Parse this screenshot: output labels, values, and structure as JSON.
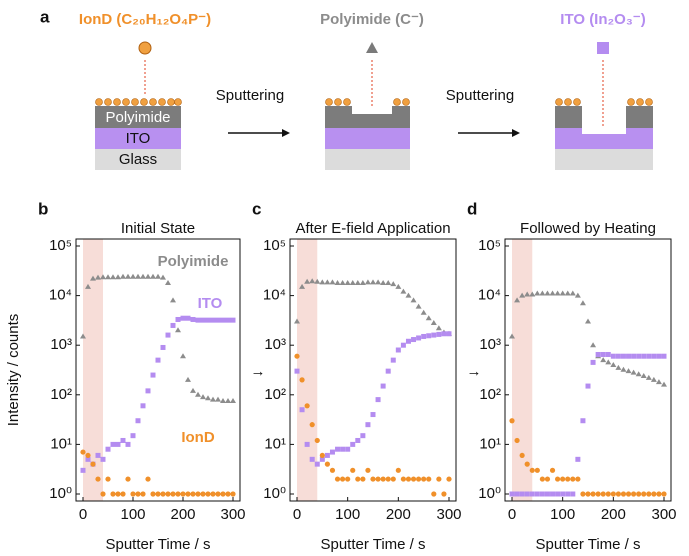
{
  "schematic": {
    "panel": "a",
    "ion_label": "IonD (C₂₀H₁₂O₄P⁻)",
    "polyimide_ion_label": "Polyimide (C⁻)",
    "ito_ion_label": "ITO (In₂O₃⁻)",
    "layers": [
      "Polyimide",
      "ITO",
      "Glass"
    ],
    "step_labels": [
      "Sputtering",
      "Sputtering"
    ]
  },
  "arrows": [
    "→",
    "→"
  ],
  "chart_data": [
    {
      "type": "scatter",
      "panel": "b",
      "title": "Initial State",
      "xlabel": "Sputter Time / s",
      "ylabel": "Intensity / counts",
      "log_y": true,
      "xlim": [
        0,
        300
      ],
      "xticks": [
        0,
        100,
        200,
        300
      ],
      "ylim": [
        1,
        100000
      ],
      "yticks": [
        {
          "value": 1,
          "label": "10⁰"
        },
        {
          "value": 10,
          "label": "10¹"
        },
        {
          "value": 100,
          "label": "10²"
        },
        {
          "value": 1000,
          "label": "10³"
        },
        {
          "value": 10000,
          "label": "10⁴"
        },
        {
          "value": 100000,
          "label": "10⁵"
        }
      ],
      "highlight_xlim": [
        0,
        40
      ],
      "x": [
        0,
        10,
        20,
        30,
        40,
        50,
        60,
        70,
        80,
        90,
        100,
        110,
        120,
        130,
        140,
        150,
        160,
        170,
        180,
        190,
        200,
        210,
        220,
        230,
        240,
        250,
        260,
        270,
        280,
        290,
        300
      ],
      "series": [
        {
          "name": "Polyimide",
          "color": "#8c8c8c",
          "marker": "triangle",
          "values": [
            1500,
            15000,
            22000,
            23000,
            23500,
            23500,
            23500,
            23500,
            24000,
            24000,
            24000,
            24000,
            24000,
            24000,
            24000,
            24000,
            23000,
            18000,
            8000,
            2000,
            600,
            200,
            120,
            100,
            90,
            85,
            80,
            80,
            75,
            75,
            75
          ]
        },
        {
          "name": "ITO",
          "color": "#b48cf0",
          "marker": "square",
          "values": [
            3,
            5,
            4,
            6,
            5,
            8,
            10,
            10,
            12,
            10,
            15,
            30,
            60,
            120,
            250,
            500,
            900,
            1600,
            2500,
            3300,
            3500,
            3500,
            3300,
            3200,
            3200,
            3200,
            3200,
            3200,
            3200,
            3200,
            3200
          ]
        },
        {
          "name": "IonD",
          "color": "#f0902a",
          "marker": "circle",
          "values": [
            7,
            6,
            4,
            2,
            1,
            2,
            1,
            1,
            1,
            2,
            1,
            1,
            1,
            2,
            1,
            1,
            1,
            1,
            1,
            1,
            1,
            1,
            1,
            1,
            1,
            1,
            1,
            1,
            1,
            1,
            1
          ]
        }
      ]
    },
    {
      "type": "scatter",
      "panel": "c",
      "title": "After E-field Application",
      "xlabel": "Sputter Time / s",
      "log_y": true,
      "xlim": [
        0,
        300
      ],
      "xticks": [
        0,
        100,
        200,
        300
      ],
      "ylim": [
        1,
        100000
      ],
      "yticks": [
        {
          "value": 1,
          "label": "10⁰"
        },
        {
          "value": 10,
          "label": "10¹"
        },
        {
          "value": 100,
          "label": "10²"
        },
        {
          "value": 1000,
          "label": "10³"
        },
        {
          "value": 10000,
          "label": "10⁴"
        },
        {
          "value": 100000,
          "label": "10⁵"
        }
      ],
      "highlight_xlim": [
        0,
        40
      ],
      "x": [
        0,
        10,
        20,
        30,
        40,
        50,
        60,
        70,
        80,
        90,
        100,
        110,
        120,
        130,
        140,
        150,
        160,
        170,
        180,
        190,
        200,
        210,
        220,
        230,
        240,
        250,
        260,
        270,
        280,
        290,
        300
      ],
      "series": [
        {
          "color": "#8c8c8c",
          "marker": "triangle",
          "values": [
            3000,
            15000,
            19000,
            19500,
            19000,
            18500,
            18500,
            18500,
            18000,
            18000,
            18000,
            18000,
            18000,
            18000,
            18500,
            18500,
            18500,
            18000,
            18000,
            17000,
            15000,
            12000,
            10000,
            8000,
            6000,
            4500,
            3500,
            2800,
            2200,
            1800,
            1700
          ]
        },
        {
          "color": "#b48cf0",
          "marker": "square",
          "values": [
            300,
            50,
            10,
            5,
            4,
            5,
            6,
            7,
            8,
            8,
            8,
            10,
            12,
            15,
            25,
            40,
            80,
            150,
            300,
            500,
            800,
            1000,
            1200,
            1300,
            1400,
            1500,
            1550,
            1600,
            1650,
            1700,
            1700
          ]
        },
        {
          "color": "#f0902a",
          "marker": "circle",
          "values": [
            600,
            200,
            60,
            25,
            12,
            6,
            4,
            3,
            2,
            2,
            2,
            3,
            2,
            2,
            3,
            2,
            2,
            2,
            2,
            2,
            3,
            2,
            2,
            2,
            2,
            2,
            2,
            1,
            2,
            1,
            2
          ]
        }
      ]
    },
    {
      "type": "scatter",
      "panel": "d",
      "title": "Followed by Heating",
      "xlabel": "Sputter Time / s",
      "log_y": true,
      "xlim": [
        0,
        300
      ],
      "xticks": [
        0,
        100,
        200,
        300
      ],
      "ylim": [
        1,
        100000
      ],
      "yticks": [
        {
          "value": 1,
          "label": "10⁰"
        },
        {
          "value": 10,
          "label": "10¹"
        },
        {
          "value": 100,
          "label": "10²"
        },
        {
          "value": 1000,
          "label": "10³"
        },
        {
          "value": 10000,
          "label": "10⁴"
        },
        {
          "value": 100000,
          "label": "10⁵"
        }
      ],
      "highlight_xlim": [
        0,
        40
      ],
      "x": [
        0,
        10,
        20,
        30,
        40,
        50,
        60,
        70,
        80,
        90,
        100,
        110,
        120,
        130,
        140,
        150,
        160,
        170,
        180,
        190,
        200,
        210,
        220,
        230,
        240,
        250,
        260,
        270,
        280,
        290,
        300
      ],
      "series": [
        {
          "color": "#8c8c8c",
          "marker": "triangle",
          "values": [
            1500,
            8000,
            10000,
            10500,
            10500,
            11000,
            11000,
            11000,
            11000,
            11000,
            11000,
            11000,
            11000,
            10000,
            7000,
            3000,
            1000,
            600,
            500,
            450,
            400,
            350,
            320,
            300,
            280,
            260,
            240,
            220,
            200,
            180,
            160
          ]
        },
        {
          "color": "#b48cf0",
          "marker": "square",
          "values": [
            1,
            1,
            1,
            1,
            1,
            1,
            1,
            1,
            1,
            1,
            1,
            1,
            1,
            5,
            30,
            150,
            450,
            650,
            650,
            650,
            600,
            600,
            600,
            600,
            600,
            600,
            600,
            600,
            600,
            600,
            600
          ]
        },
        {
          "color": "#f0902a",
          "marker": "circle",
          "values": [
            30,
            12,
            6,
            4,
            3,
            3,
            2,
            2,
            3,
            2,
            2,
            2,
            2,
            2,
            1,
            1,
            1,
            1,
            1,
            1,
            1,
            1,
            1,
            1,
            1,
            1,
            1,
            1,
            1,
            1,
            1
          ]
        }
      ]
    }
  ]
}
